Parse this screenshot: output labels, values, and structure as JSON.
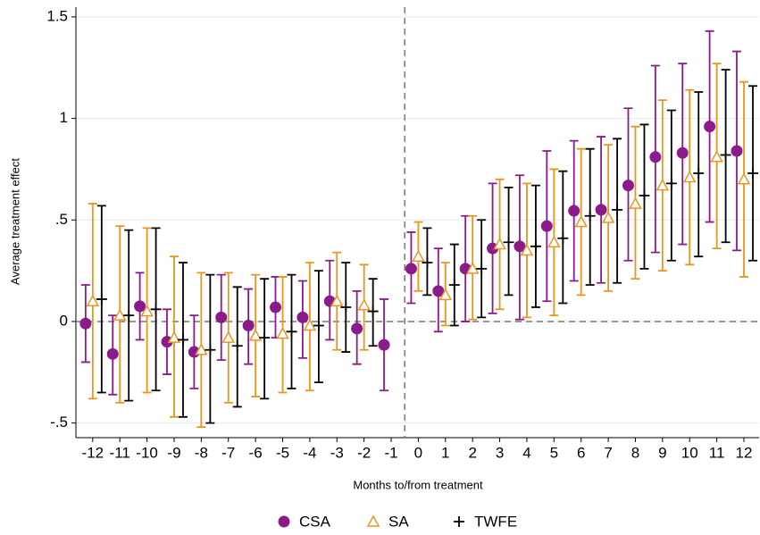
{
  "chart_data": {
    "type": "errorbar",
    "xlabel": "Months to/from treatment",
    "ylabel": "Average treatment effect",
    "x": [
      -12,
      -11,
      -10,
      -9,
      -8,
      -7,
      -6,
      -5,
      -4,
      -3,
      -2,
      -1,
      0,
      1,
      2,
      3,
      4,
      5,
      6,
      7,
      8,
      9,
      10,
      11,
      12
    ],
    "xlim": [
      -12.62,
      12.56
    ],
    "xticks": [
      -12,
      -11,
      -10,
      -9,
      -8,
      -7,
      -6,
      -5,
      -4,
      -3,
      -2,
      -1,
      0,
      1,
      2,
      3,
      4,
      5,
      6,
      7,
      8,
      9,
      10,
      11,
      12
    ],
    "ylim": [
      -0.572,
      1.548
    ],
    "yticks": [
      {
        "value": -0.5,
        "label": "-.5"
      },
      0,
      {
        "value": 0.5,
        "label": ".5"
      },
      1,
      1.5
    ],
    "grid": true,
    "vline": -0.5,
    "hline": 0,
    "legend": "bottom",
    "series": [
      {
        "name": "CSA",
        "color": "#8b1a8b",
        "marker": "circle",
        "values": [
          -0.01,
          -0.16,
          0.075,
          -0.1,
          -0.15,
          0.02,
          -0.02,
          0.07,
          0.02,
          0.1,
          -0.035,
          -0.115,
          0.26,
          0.15,
          0.26,
          0.36,
          0.37,
          0.47,
          0.545,
          0.55,
          0.67,
          0.81,
          0.83,
          0.96,
          0.84
        ],
        "low": [
          -0.2,
          -0.36,
          -0.09,
          -0.26,
          -0.33,
          -0.19,
          -0.21,
          -0.08,
          -0.18,
          -0.09,
          -0.21,
          -0.34,
          0.09,
          -0.05,
          0.0,
          0.04,
          0.01,
          0.1,
          0.2,
          0.19,
          0.3,
          0.34,
          0.38,
          0.49,
          0.35
        ],
        "high": [
          0.18,
          0.03,
          0.24,
          0.06,
          0.03,
          0.23,
          0.16,
          0.22,
          0.2,
          0.3,
          0.15,
          0.11,
          0.44,
          0.36,
          0.52,
          0.68,
          0.72,
          0.84,
          0.89,
          0.91,
          1.05,
          1.26,
          1.27,
          1.43,
          1.33
        ]
      },
      {
        "name": "SA",
        "color": "#e8961e",
        "marker": "triangle",
        "values": [
          0.1,
          0.03,
          0.05,
          -0.08,
          -0.14,
          -0.08,
          -0.07,
          -0.06,
          -0.02,
          0.1,
          0.08,
          null,
          0.32,
          0.13,
          0.26,
          0.38,
          0.35,
          0.39,
          0.49,
          0.51,
          0.58,
          0.67,
          0.71,
          0.81,
          0.7
        ],
        "low": [
          -0.38,
          -0.4,
          -0.35,
          -0.47,
          -0.52,
          -0.4,
          -0.37,
          -0.35,
          -0.34,
          -0.14,
          -0.14,
          null,
          0.15,
          -0.02,
          0.01,
          0.06,
          0.02,
          0.03,
          0.13,
          0.15,
          0.21,
          0.25,
          0.28,
          0.36,
          0.22
        ],
        "high": [
          0.58,
          0.47,
          0.46,
          0.32,
          0.24,
          0.24,
          0.23,
          0.22,
          0.29,
          0.34,
          0.28,
          null,
          0.49,
          0.29,
          0.52,
          0.7,
          0.68,
          0.75,
          0.85,
          0.87,
          0.96,
          1.09,
          1.14,
          1.27,
          1.18
        ]
      },
      {
        "name": "TWFE",
        "color": "#000000",
        "marker": "plus",
        "values": [
          0.11,
          0.03,
          0.06,
          -0.09,
          -0.14,
          -0.12,
          -0.08,
          -0.05,
          -0.02,
          0.07,
          0.05,
          null,
          0.29,
          0.18,
          0.26,
          0.39,
          0.37,
          0.41,
          0.52,
          0.55,
          0.62,
          0.68,
          0.73,
          0.82,
          0.73
        ],
        "low": [
          -0.35,
          -0.39,
          -0.34,
          -0.47,
          -0.5,
          -0.42,
          -0.38,
          -0.33,
          -0.3,
          -0.15,
          -0.12,
          null,
          0.13,
          -0.02,
          0.02,
          0.13,
          0.07,
          0.09,
          0.18,
          0.19,
          0.26,
          0.3,
          0.32,
          0.39,
          0.3
        ],
        "high": [
          0.57,
          0.45,
          0.46,
          0.29,
          0.23,
          0.17,
          0.21,
          0.23,
          0.25,
          0.29,
          0.21,
          null,
          0.46,
          0.38,
          0.5,
          0.66,
          0.67,
          0.74,
          0.85,
          0.9,
          0.97,
          1.04,
          1.13,
          1.24,
          1.16
        ]
      }
    ]
  }
}
